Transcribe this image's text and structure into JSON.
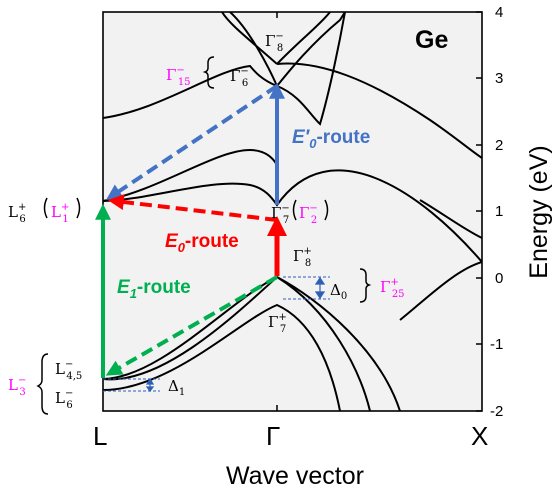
{
  "title": "Ge",
  "xlabel": "Wave vector",
  "ylabel": "Energy (eV)",
  "x_ticks": [
    "L",
    "Γ",
    "X"
  ],
  "y_ticks": [
    "4",
    "3",
    "2",
    "1",
    "0",
    "-1",
    "-2"
  ],
  "colors": {
    "blue": "#4472c4",
    "red": "#ff0000",
    "green": "#00b050",
    "magenta": "#ff00ff",
    "panel": "#f2f2f2",
    "dash": "#2e5fb8"
  },
  "routes": {
    "e0prime": {
      "sym": "E′",
      "sub": "0",
      "text": "-route"
    },
    "e0": {
      "sym": "E",
      "sub": "0",
      "text": "-route"
    },
    "e1": {
      "sym": "E",
      "sub": "1",
      "text": "-route"
    }
  },
  "labels": {
    "gamma8_minus": {
      "base": "Γ",
      "sub": "8",
      "sup": "−"
    },
    "gamma6_minus": {
      "base": "Γ",
      "sub": "6",
      "sup": "−"
    },
    "gamma15_minus": {
      "base": "Γ",
      "sub": "15",
      "sup": "−"
    },
    "gamma7_minus": {
      "base": "Γ",
      "sub": "7",
      "sup": "−"
    },
    "gamma2_minus": {
      "base": "Γ",
      "sub": "2",
      "sup": "−"
    },
    "gamma8_plus": {
      "base": "Γ",
      "sub": "8",
      "sup": "+"
    },
    "gamma7_plus": {
      "base": "Γ",
      "sub": "7",
      "sup": "+"
    },
    "gamma25_plus": {
      "base": "Γ",
      "sub": "25",
      "sup": "+"
    },
    "delta0": {
      "base": "Δ",
      "sub": "0"
    },
    "delta1": {
      "base": "Δ",
      "sub": "1"
    },
    "l6_plus": {
      "base": "L",
      "sub": "6",
      "sup": "+"
    },
    "l1_plus": {
      "base": "L",
      "sub": "1",
      "sup": "+"
    },
    "l3_minus": {
      "base": "L",
      "sub": "3",
      "sup": "−"
    },
    "l45_minus": {
      "base": "L",
      "sub": "4,5",
      "sup": "−"
    },
    "l6_minus": {
      "base": "L",
      "sub": "6",
      "sup": "−"
    }
  }
}
